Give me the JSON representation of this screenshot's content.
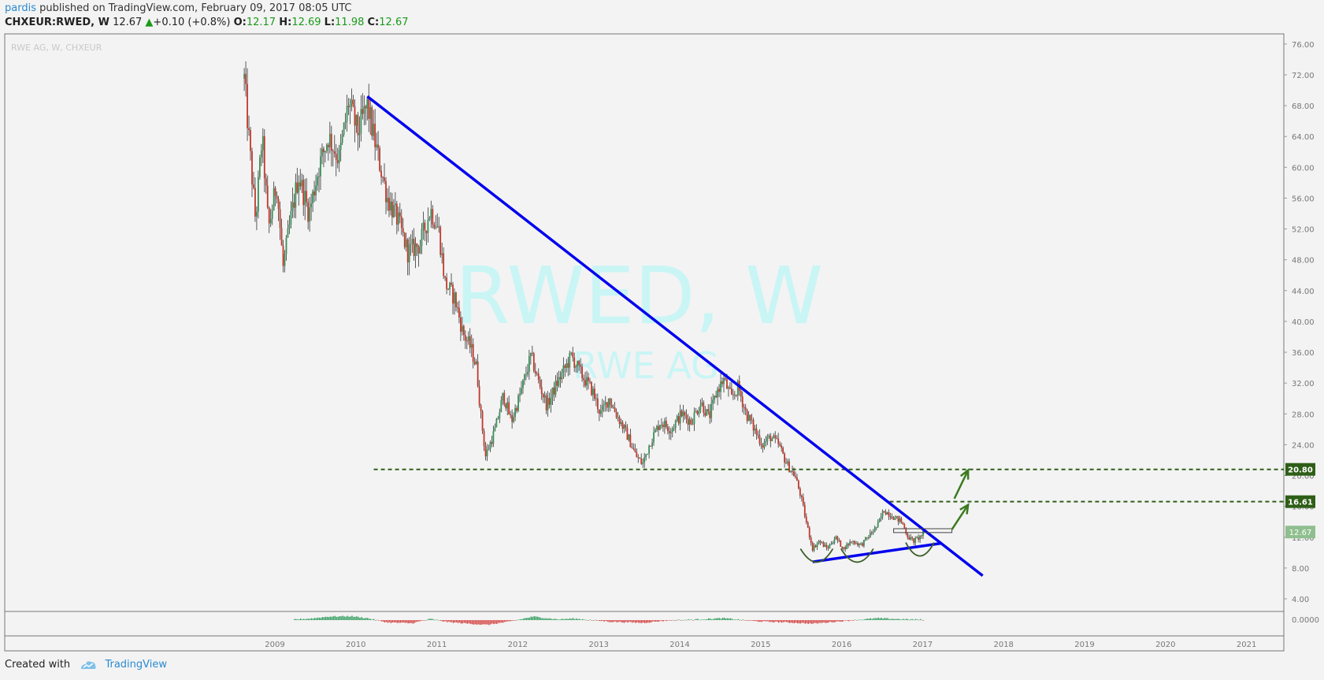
{
  "header": {
    "user": "pardis",
    "published_text": "published on TradingView.com, February 09, 2017 08:05 UTC",
    "symbol": "CHXEUR:RWED, W",
    "last": "12.67",
    "change": "+0.10 (+0.8%)",
    "o_label": "O:",
    "o_value": "12.17",
    "h_label": "H:",
    "h_value": "12.69",
    "l_label": "L:",
    "l_value": "11.98",
    "c_label": "C:",
    "c_value": "12.67"
  },
  "footer": {
    "created_with": "Created with",
    "brand": "TradingView"
  },
  "chart_data": {
    "type": "candlestick",
    "title": "RWE AG, W, CHXEUR",
    "watermark_main": "RWED, W",
    "watermark_sub": "RWE AG",
    "x_tick_labels": [
      "2009",
      "2010",
      "2011",
      "2012",
      "2013",
      "2014",
      "2015",
      "2016",
      "2017",
      "2018",
      "2019",
      "2020",
      "2021"
    ],
    "y_tick_labels": [
      "76.00",
      "72.00",
      "68.00",
      "64.00",
      "60.00",
      "56.00",
      "52.00",
      "48.00",
      "44.00",
      "40.00",
      "36.00",
      "32.00",
      "28.00",
      "24.00",
      "20.00",
      "16.00",
      "12.00",
      "8.00",
      "4.00"
    ],
    "y_range": [
      2,
      78
    ],
    "x_range": [
      2008.0,
      2021.45
    ],
    "price_path": [
      [
        2008.68,
        71.5
      ],
      [
        2008.75,
        62
      ],
      [
        2008.82,
        53
      ],
      [
        2008.9,
        64
      ],
      [
        2008.98,
        52
      ],
      [
        2009.08,
        58
      ],
      [
        2009.16,
        47
      ],
      [
        2009.25,
        53
      ],
      [
        2009.35,
        59
      ],
      [
        2009.48,
        54
      ],
      [
        2009.6,
        60
      ],
      [
        2009.72,
        64
      ],
      [
        2009.85,
        61
      ],
      [
        2009.97,
        68.5
      ],
      [
        2010.08,
        64.5
      ],
      [
        2010.2,
        68
      ],
      [
        2010.32,
        62
      ],
      [
        2010.45,
        56
      ],
      [
        2010.58,
        53
      ],
      [
        2010.7,
        49
      ],
      [
        2010.85,
        50
      ],
      [
        2010.98,
        54.5
      ],
      [
        2011.08,
        52
      ],
      [
        2011.16,
        45
      ],
      [
        2011.28,
        43
      ],
      [
        2011.38,
        38.5
      ],
      [
        2011.48,
        36.5
      ],
      [
        2011.55,
        34
      ],
      [
        2011.6,
        28
      ],
      [
        2011.66,
        22.5
      ],
      [
        2011.78,
        26
      ],
      [
        2011.88,
        30.5
      ],
      [
        2011.98,
        27
      ],
      [
        2012.1,
        31
      ],
      [
        2012.22,
        35.5
      ],
      [
        2012.32,
        32
      ],
      [
        2012.42,
        29
      ],
      [
        2012.52,
        31.5
      ],
      [
        2012.62,
        33.5
      ],
      [
        2012.72,
        35.5
      ],
      [
        2012.85,
        33
      ],
      [
        2012.98,
        31
      ],
      [
        2013.08,
        28
      ],
      [
        2013.18,
        30
      ],
      [
        2013.3,
        27.5
      ],
      [
        2013.42,
        25
      ],
      [
        2013.52,
        22.5
      ],
      [
        2013.6,
        21.5
      ],
      [
        2013.7,
        24.5
      ],
      [
        2013.82,
        27
      ],
      [
        2013.95,
        26
      ],
      [
        2014.08,
        28
      ],
      [
        2014.2,
        27
      ],
      [
        2014.32,
        29.5
      ],
      [
        2014.42,
        27.5
      ],
      [
        2014.52,
        31
      ],
      [
        2014.6,
        32.5
      ],
      [
        2014.7,
        30
      ],
      [
        2014.78,
        31.5
      ],
      [
        2014.88,
        28
      ],
      [
        2014.98,
        26
      ],
      [
        2015.08,
        24
      ],
      [
        2015.18,
        25
      ],
      [
        2015.28,
        24
      ],
      [
        2015.38,
        21.5
      ],
      [
        2015.48,
        20
      ],
      [
        2015.55,
        17.5
      ],
      [
        2015.62,
        14
      ],
      [
        2015.7,
        10.5
      ],
      [
        2015.78,
        11.5
      ],
      [
        2015.88,
        10.5
      ],
      [
        2015.98,
        12
      ],
      [
        2016.08,
        10.5
      ],
      [
        2016.18,
        11.5
      ],
      [
        2016.3,
        11
      ],
      [
        2016.42,
        12.5
      ],
      [
        2016.5,
        13.5
      ],
      [
        2016.58,
        15.5
      ],
      [
        2016.65,
        15
      ],
      [
        2016.72,
        14.5
      ],
      [
        2016.8,
        14
      ],
      [
        2016.88,
        12
      ],
      [
        2016.95,
        11.5
      ],
      [
        2017.02,
        12
      ],
      [
        2017.08,
        12.67
      ]
    ],
    "oscillator_path": [
      [
        2009.3,
        0.2
      ],
      [
        2009.5,
        0.4
      ],
      [
        2009.72,
        0.9
      ],
      [
        2010.0,
        1.0
      ],
      [
        2010.2,
        0.5
      ],
      [
        2010.45,
        -0.6
      ],
      [
        2010.75,
        -0.8
      ],
      [
        2010.98,
        0.3
      ],
      [
        2011.2,
        -0.5
      ],
      [
        2011.45,
        -0.9
      ],
      [
        2011.68,
        -1.2
      ],
      [
        2011.95,
        -0.4
      ],
      [
        2012.25,
        0.9
      ],
      [
        2012.55,
        0.2
      ],
      [
        2012.75,
        0.4
      ],
      [
        2013.2,
        -0.4
      ],
      [
        2013.6,
        -0.7
      ],
      [
        2013.9,
        -0.1
      ],
      [
        2014.3,
        0.2
      ],
      [
        2014.6,
        0.5
      ],
      [
        2015.0,
        -0.3
      ],
      [
        2015.4,
        -0.6
      ],
      [
        2015.7,
        -0.9
      ],
      [
        2016.1,
        -0.2
      ],
      [
        2016.5,
        0.5
      ],
      [
        2016.85,
        0.2
      ],
      [
        2017.08,
        0.1
      ]
    ],
    "horizontal_levels": [
      {
        "value": 20.8,
        "label": "20.80",
        "from_x": 2010.28,
        "color": "#2e5e17"
      },
      {
        "value": 16.61,
        "label": "16.61",
        "from_x": 2016.65,
        "color": "#2e5e17"
      }
    ],
    "last_price": {
      "value": 12.67,
      "label": "12.67",
      "color": "#8fbf8f"
    },
    "oscillator_zero_label": "0.0000",
    "trendlines": [
      {
        "x1": 2010.2,
        "y1": 69.2,
        "x2": 2017.8,
        "y2": 7.0,
        "color": "#0000ee"
      },
      {
        "x1": 2015.7,
        "y1": 8.8,
        "x2": 2017.28,
        "y2": 11.2,
        "color": "#0000ee"
      }
    ],
    "rectangle": {
      "x1": 2016.7,
      "y1": 12.6,
      "x2": 2017.42,
      "y2": 13.1
    },
    "arrows": [
      {
        "x1": 2017.42,
        "y1": 13.0,
        "x2": 2017.62,
        "y2": 16.2
      },
      {
        "x1": 2017.45,
        "y1": 17.0,
        "x2": 2017.62,
        "y2": 20.7
      }
    ],
    "arcs": [
      {
        "x1": 2015.55,
        "x2": 2015.95,
        "y": 10.5
      },
      {
        "x1": 2016.05,
        "x2": 2016.45,
        "y": 10.5
      },
      {
        "x1": 2016.85,
        "x2": 2017.2,
        "y": 11.3
      }
    ],
    "colors": {
      "up": "#3a8f5a",
      "down": "#c0392b",
      "trend": "#0000ee",
      "level": "#2e5e17",
      "watermark": "#c9f5f5",
      "arrow": "#3b7a1f"
    }
  }
}
